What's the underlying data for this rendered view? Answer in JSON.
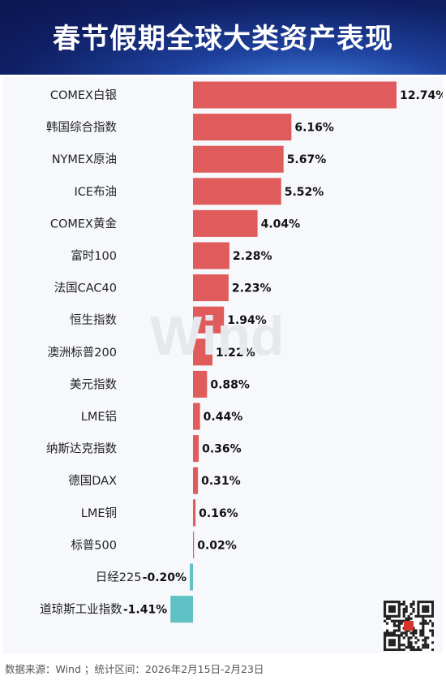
{
  "header": {
    "title": "春节假期全球大类资产表现"
  },
  "watermark": "Wind",
  "footer": {
    "source": "数据来源：Wind ；统计区间：2026年2月15日-2月23日"
  },
  "colors": {
    "positive": "#e05b5b",
    "negative": "#5fc1c4",
    "banner": "#13277a"
  },
  "chart_data": {
    "type": "bar",
    "orientation": "horizontal",
    "title": "春节假期全球大类资产表现",
    "categories": [
      "COMEX白银",
      "韩国综合指数",
      "NYMEX原油",
      "ICE布油",
      "COMEX黄金",
      "富时100",
      "法国CAC40",
      "恒生指数",
      "澳洲标普200",
      "美元指数",
      "LME铝",
      "纳斯达克指数",
      "德国DAX",
      "LME铜",
      "标普500",
      "日经225",
      "道琼斯工业指数"
    ],
    "values": [
      12.74,
      6.16,
      5.67,
      5.52,
      4.04,
      2.28,
      2.23,
      1.94,
      1.22,
      0.88,
      0.44,
      0.36,
      0.31,
      0.16,
      0.02,
      -0.2,
      -1.41
    ],
    "value_labels": [
      "12.74%",
      "6.16%",
      "5.67%",
      "5.52%",
      "4.04%",
      "2.28%",
      "2.23%",
      "1.94%",
      "1.22%",
      "0.88%",
      "0.44%",
      "0.36%",
      "0.31%",
      "0.16%",
      "0.02%",
      "-0.20%",
      "-1.41%"
    ],
    "xlabel": "",
    "ylabel": "",
    "grid": false,
    "legend": "none"
  }
}
